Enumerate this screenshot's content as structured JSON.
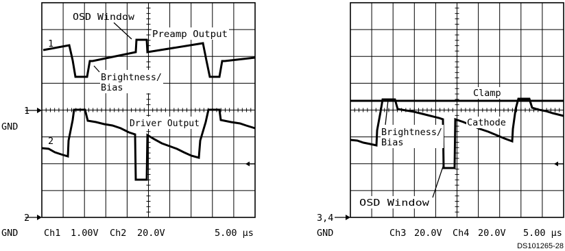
{
  "left_scope": {
    "markers": {
      "ch1_ref": "1",
      "gnd_top": "GND",
      "ch2_ref": "2",
      "gnd_bottom": "GND",
      "trace1_tag": "1",
      "trace2_tag": "2"
    },
    "annotations": {
      "osd_window": "OSD Window",
      "preamp_output": "Preamp Output",
      "brightness_bias_line1": "Brightness/",
      "brightness_bias_line2": "Bias",
      "driver_output": "Driver Output"
    },
    "footer": {
      "ch1": "Ch1",
      "ch1_scale": "1.00V",
      "ch2": "Ch2",
      "ch2_scale": "20.0V",
      "timebase": "5.00 µs"
    }
  },
  "right_scope": {
    "markers": {
      "ch34_ref": "3,4",
      "gnd": "GND"
    },
    "annotations": {
      "clamp": "Clamp",
      "cathode": "Cathode",
      "brightness_bias_line1": "Brightness/",
      "brightness_bias_line2": "Bias",
      "osd_window": "OSD Window"
    },
    "footer": {
      "ch3": "Ch3",
      "ch3_scale": "20.0V",
      "ch4": "Ch4",
      "ch4_scale": "20.0V",
      "timebase": "5.00 µs"
    }
  },
  "figure_id": "DS101265-28",
  "colors": {
    "trace": "#000000",
    "grid": "#000000",
    "background": "#ffffff"
  }
}
